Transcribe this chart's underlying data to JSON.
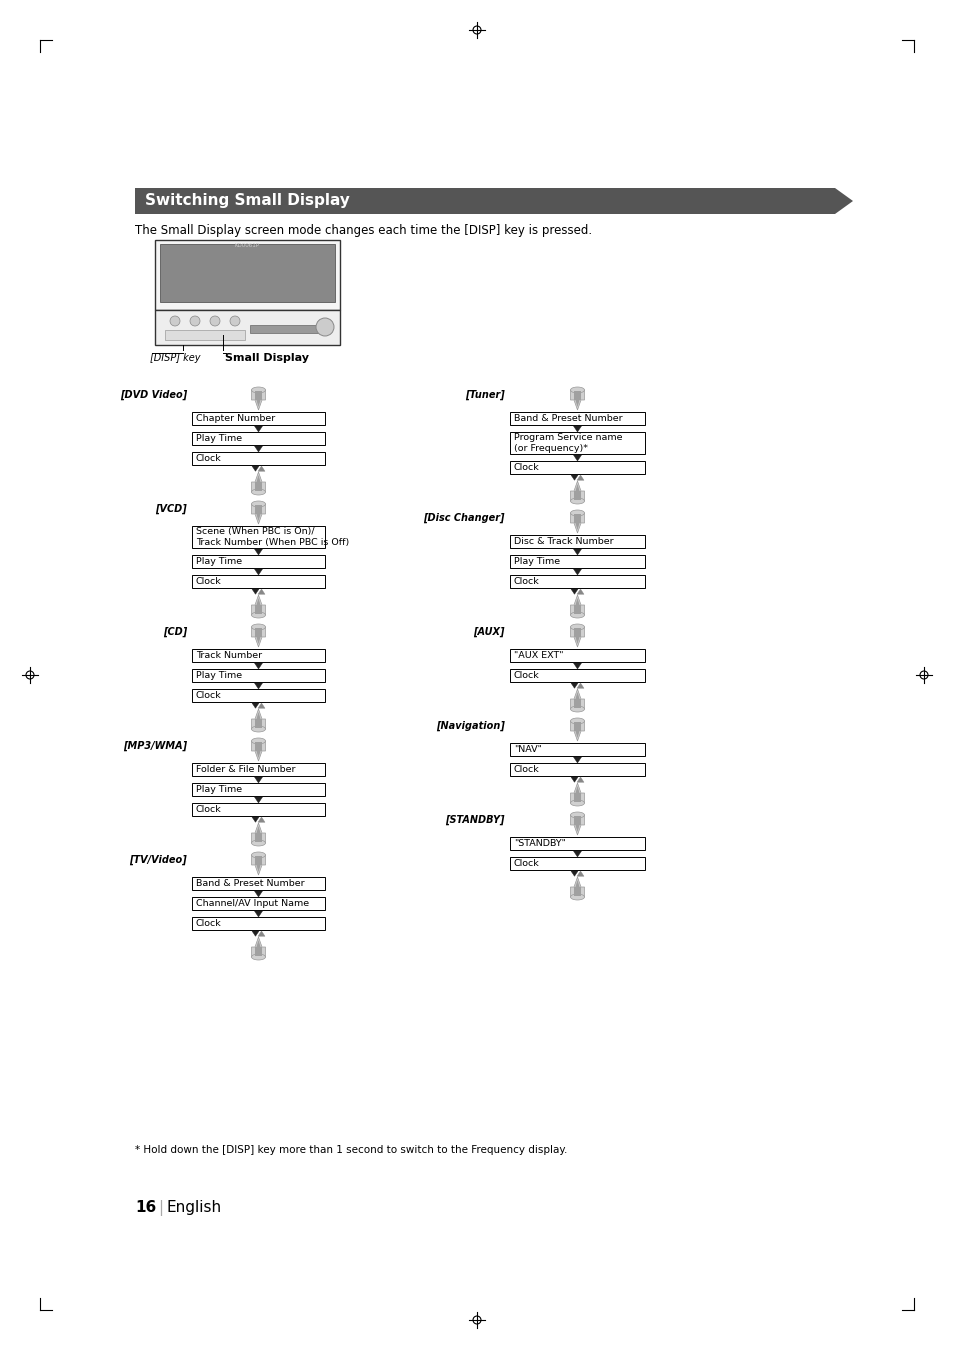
{
  "title": "Switching Small Display",
  "intro_text": "The Small Display screen mode changes each time the [DISP] key is pressed.",
  "page_number": "16",
  "page_lang": "English",
  "footnote": "* Hold down the [DISP] key more than 1 second to switch to the Frequency display.",
  "left_column": {
    "sections": [
      {
        "label": "[DVD Video]",
        "items": [
          "Chapter Number",
          "Play Time",
          "Clock"
        ]
      },
      {
        "label": "[VCD]",
        "items": [
          "Scene (When PBC is On)/\nTrack Number (When PBC is Off)",
          "Play Time",
          "Clock"
        ]
      },
      {
        "label": "[CD]",
        "items": [
          "Track Number",
          "Play Time",
          "Clock"
        ]
      },
      {
        "label": "[MP3/WMA]",
        "items": [
          "Folder & File Number",
          "Play Time",
          "Clock"
        ]
      },
      {
        "label": "[TV/Video]",
        "items": [
          "Band & Preset Number",
          "Channel/AV Input Name",
          "Clock"
        ]
      }
    ]
  },
  "right_column": {
    "sections": [
      {
        "label": "[Tuner]",
        "items": [
          "Band & Preset Number",
          "Program Service name\n(or Frequency)*",
          "Clock"
        ]
      },
      {
        "label": "[Disc Changer]",
        "items": [
          "Disc & Track Number",
          "Play Time",
          "Clock"
        ]
      },
      {
        "label": "[AUX]",
        "items": [
          "\"AUX EXT\"",
          "Clock"
        ]
      },
      {
        "label": "[Navigation]",
        "items": [
          "\"NAV\"",
          "Clock"
        ]
      },
      {
        "label": "[STANDBY]",
        "items": [
          "\"STANDBY\"",
          "Clock"
        ]
      }
    ]
  },
  "bg_color": "#ffffff",
  "header_bg": "#555555",
  "header_text_color": "#ffffff",
  "box_color": "#ffffff",
  "box_edge_color": "#000000"
}
